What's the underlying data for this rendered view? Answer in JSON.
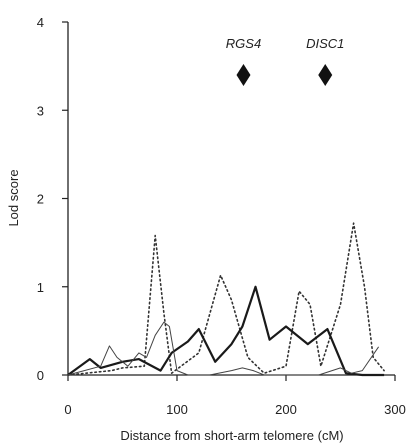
{
  "chart_data": {
    "type": "line",
    "xlabel": "Distance from short-arm telomere (cM)",
    "ylabel": "Lod score",
    "xlim": [
      0,
      300
    ],
    "ylim": [
      0,
      4
    ],
    "xticks": [
      0,
      100,
      200,
      300
    ],
    "yticks": [
      0,
      1,
      2,
      3,
      4
    ],
    "grid": false,
    "markers": [
      {
        "label": "RGS4",
        "x": 161,
        "y": 3.4
      },
      {
        "label": "DISC1",
        "x": 236,
        "y": 3.4
      }
    ],
    "series": [
      {
        "style": "dotted",
        "x": [
          0,
          40,
          50,
          70,
          80,
          88,
          95,
          120,
          140,
          150,
          165,
          180,
          200,
          212,
          222,
          232,
          250,
          262,
          272,
          280,
          290
        ],
        "y": [
          0,
          0.05,
          0.08,
          0.1,
          1.58,
          0.7,
          0.02,
          0.25,
          1.13,
          0.85,
          0.2,
          0.02,
          0.1,
          0.95,
          0.8,
          0.1,
          0.8,
          1.72,
          1.0,
          0.2,
          0.05
        ]
      },
      {
        "style": "thick-solid",
        "x": [
          0,
          20,
          30,
          50,
          65,
          85,
          95,
          110,
          120,
          135,
          150,
          160,
          172,
          185,
          200,
          220,
          238,
          255,
          270,
          290
        ],
        "y": [
          0,
          0.18,
          0.08,
          0.15,
          0.18,
          0.05,
          0.25,
          0.38,
          0.52,
          0.15,
          0.35,
          0.55,
          1.0,
          0.4,
          0.55,
          0.35,
          0.52,
          0.02,
          0,
          0
        ]
      },
      {
        "style": "thin-solid",
        "x": [
          0,
          15,
          30,
          38,
          45,
          55,
          65,
          72,
          80,
          88,
          93,
          100,
          110,
          130,
          150,
          160,
          170,
          180,
          200,
          230,
          250,
          260,
          270,
          285
        ],
        "y": [
          0,
          0.05,
          0.1,
          0.33,
          0.2,
          0.1,
          0.25,
          0.2,
          0.45,
          0.6,
          0.55,
          0.05,
          0,
          0,
          0.05,
          0.08,
          0.05,
          0,
          0,
          0,
          0.08,
          0.02,
          0.05,
          0.32
        ]
      }
    ]
  }
}
